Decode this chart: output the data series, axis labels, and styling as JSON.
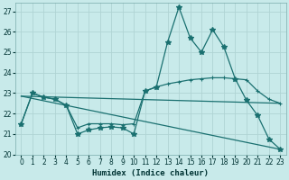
{
  "xlabel": "Humidex (Indice chaleur)",
  "background_color": "#c8eaea",
  "grid_color": "#b0d4d4",
  "line_color": "#1a7070",
  "xlim": [
    -0.5,
    23.5
  ],
  "ylim": [
    20,
    27.4
  ],
  "yticks": [
    20,
    21,
    22,
    23,
    24,
    25,
    26,
    27
  ],
  "xticks": [
    0,
    1,
    2,
    3,
    4,
    5,
    6,
    7,
    8,
    9,
    10,
    11,
    12,
    13,
    14,
    15,
    16,
    17,
    18,
    19,
    20,
    21,
    22,
    23
  ],
  "line_star": {
    "x": [
      0,
      1,
      2,
      3,
      4,
      5,
      6,
      7,
      8,
      9,
      10,
      11,
      12,
      13,
      14,
      15,
      16,
      17,
      18,
      19,
      20,
      21,
      22,
      23
    ],
    "y": [
      21.5,
      23.0,
      22.8,
      22.7,
      22.4,
      21.0,
      21.2,
      21.3,
      21.35,
      21.3,
      21.0,
      23.1,
      23.3,
      25.5,
      27.2,
      25.7,
      25.0,
      26.1,
      25.25,
      23.7,
      22.65,
      21.9,
      20.75,
      20.25
    ]
  },
  "line_plus": {
    "x": [
      0,
      1,
      2,
      3,
      4,
      5,
      6,
      7,
      8,
      9,
      10,
      11,
      12,
      13,
      14,
      15,
      16,
      17,
      18,
      19,
      20,
      21,
      22,
      23
    ],
    "y": [
      21.5,
      23.0,
      22.8,
      22.7,
      22.4,
      21.3,
      21.5,
      21.5,
      21.5,
      21.45,
      21.5,
      23.1,
      23.3,
      23.45,
      23.55,
      23.65,
      23.7,
      23.75,
      23.75,
      23.7,
      23.65,
      23.1,
      22.7,
      22.5
    ]
  },
  "line_diag1": {
    "x": [
      0,
      23
    ],
    "y": [
      22.85,
      22.5
    ]
  },
  "line_diag2": {
    "x": [
      0,
      23
    ],
    "y": [
      22.85,
      20.25
    ]
  }
}
